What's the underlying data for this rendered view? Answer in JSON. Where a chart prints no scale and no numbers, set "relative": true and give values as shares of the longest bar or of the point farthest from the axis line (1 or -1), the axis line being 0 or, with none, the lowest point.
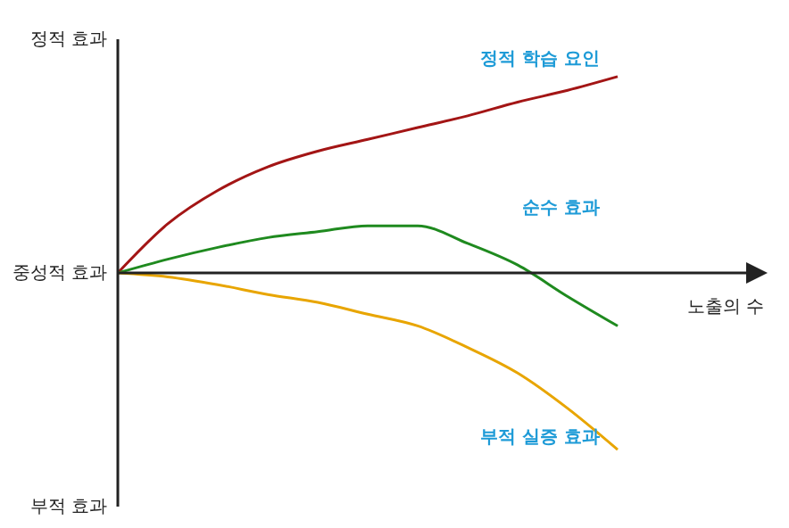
{
  "chart_data": {
    "type": "line",
    "xlabel": "노출의 수",
    "relative": true,
    "annotations": [
      "정적 효과",
      "중성적 효과",
      "부적 효과"
    ],
    "categories": [
      null,
      null,
      null,
      null,
      null,
      null,
      null,
      null,
      null,
      null,
      null,
      null,
      null,
      null
    ],
    "grid": false,
    "legend": false,
    "marker": "none",
    "line_style": "solid",
    "series": [
      {
        "name": "정적 학습 요인",
        "color": "#a31515",
        "values": [
          0,
          0.25,
          0.42,
          0.54,
          0.62,
          0.68,
          0.74,
          0.8,
          0.87,
          0.93,
          1,
          null,
          null,
          null
        ]
      },
      {
        "name": "순수 효과",
        "color": "#1f8a1f",
        "values": [
          0,
          0.07,
          0.13,
          0.18,
          0.21,
          0.24,
          0.24,
          0.15,
          0.04,
          -0.12,
          -0.27,
          null,
          null,
          null
        ]
      },
      {
        "name": "부적 실증 효과",
        "color": "#e8a500",
        "values": [
          0,
          -0.02,
          -0.06,
          -0.11,
          -0.15,
          -0.21,
          -0.27,
          -0.38,
          -0.51,
          -0.69,
          -0.9,
          null,
          null,
          null
        ]
      }
    ]
  }
}
